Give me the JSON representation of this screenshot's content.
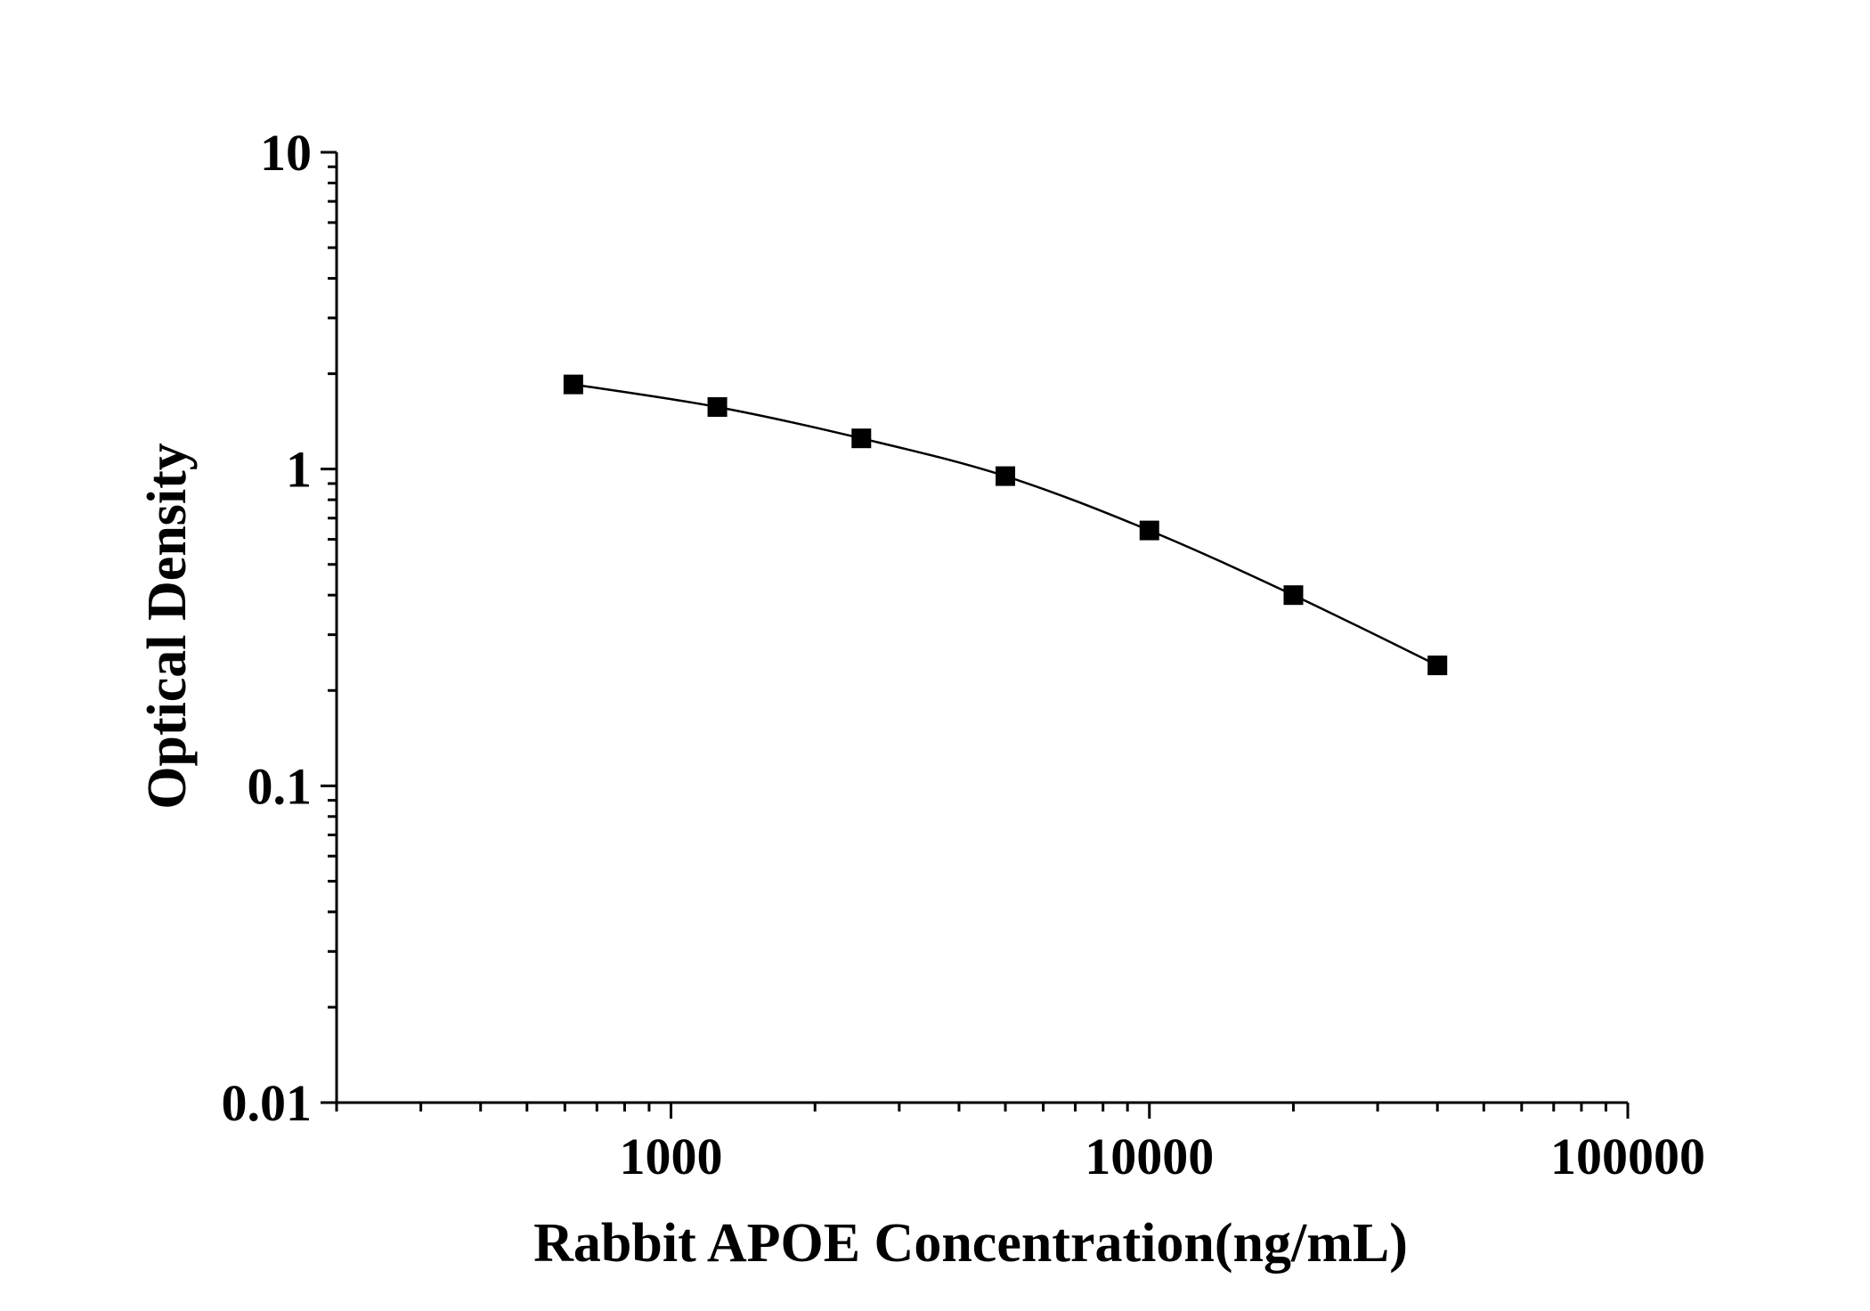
{
  "chart_data": {
    "type": "scatter",
    "title": "",
    "xlabel": "Rabbit APOE Concentration(ng/mL)",
    "ylabel": "Optical Density",
    "x_scale": "log",
    "y_scale": "log",
    "xlim": [
      200,
      100000
    ],
    "ylim": [
      0.01,
      10
    ],
    "x_ticks": [
      1000,
      10000,
      100000
    ],
    "x_tick_labels": [
      "1000",
      "10000",
      "100000"
    ],
    "y_ticks": [
      0.01,
      0.1,
      1,
      10
    ],
    "y_tick_labels": [
      "0.01",
      "0.1",
      "1",
      "10"
    ],
    "grid": false,
    "legend": "none",
    "marker": "square",
    "line": "smooth",
    "color": "#000000",
    "series": [
      {
        "x": [
          625,
          1250,
          2500,
          5000,
          10000,
          20000,
          40000
        ],
        "y": [
          1.85,
          1.57,
          1.25,
          0.95,
          0.64,
          0.4,
          0.24
        ]
      }
    ]
  }
}
